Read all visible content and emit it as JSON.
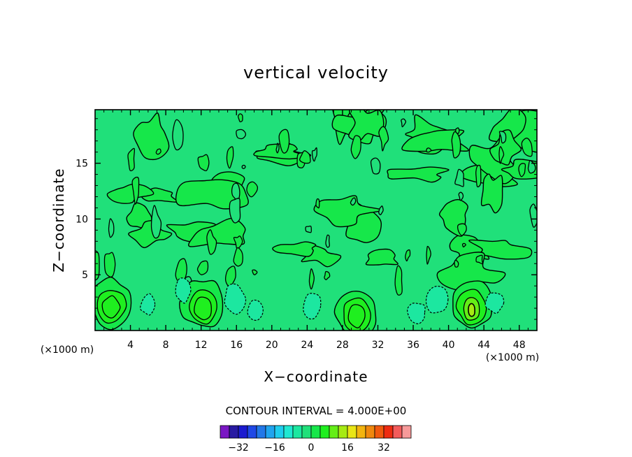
{
  "chart_data": {
    "type": "contour",
    "title": "vertical velocity",
    "xlabel": "X−coordinate",
    "ylabel": "Z−coordinate",
    "x_unit": "(×1000 m)",
    "y_unit": "(×1000 m)",
    "xlim": [
      0,
      50
    ],
    "ylim": [
      0,
      19.8
    ],
    "x_ticks": [
      4,
      8,
      12,
      16,
      20,
      24,
      28,
      32,
      36,
      40,
      44,
      48
    ],
    "x_tick_labels": [
      "4",
      "8",
      "12",
      "16",
      "20",
      "24",
      "28",
      "32",
      "36",
      "40",
      "44",
      "48"
    ],
    "y_ticks": [
      5,
      10,
      15
    ],
    "y_tick_labels": [
      "5",
      "10",
      "15"
    ],
    "contour_interval_text": "CONTOUR INTERVAL = 4.000E+00",
    "contour_interval": 4,
    "colorbar": {
      "levels": [
        -36,
        -32,
        -28,
        -24,
        -20,
        -16,
        -12,
        -8,
        -4,
        0,
        4,
        8,
        12,
        16,
        20,
        24,
        28,
        32,
        36,
        40
      ],
      "colors": [
        "#7a17c4",
        "#281aa2",
        "#1b1bcf",
        "#1f48e6",
        "#2277e8",
        "#20a4ef",
        "#1fcdee",
        "#20e8d2",
        "#1ce7a0",
        "#20e07a",
        "#16e74a",
        "#1fef1f",
        "#64ee17",
        "#a6ea13",
        "#e9e515",
        "#f3b40f",
        "#f0880e",
        "#f0590e",
        "#ee2b11",
        "#f35b5b",
        "#f79a9a"
      ],
      "tick_values": [
        -32,
        -16,
        0,
        16,
        32
      ],
      "tick_labels": [
        "−32",
        "−16",
        "0",
        "16",
        "32"
      ]
    },
    "background_color": "#20e07a",
    "positive_region_colors": [
      "#16e74a",
      "#1fef1f",
      "#64ee17",
      "#a6ea13"
    ],
    "negative_region_colors": [
      "#1ce7a0",
      "#20e8d2"
    ],
    "features": [
      {
        "kind": "updraft",
        "x": 1.8,
        "z": 2.2,
        "value": 12
      },
      {
        "kind": "updraft",
        "x": 12.2,
        "z": 2.1,
        "value": 12
      },
      {
        "kind": "updraft",
        "x": 29.6,
        "z": 1.4,
        "value": 12
      },
      {
        "kind": "updraft",
        "x": 42.6,
        "z": 2.1,
        "value": 16
      },
      {
        "kind": "downdraft",
        "x": 6.0,
        "z": 2.3,
        "value": -4
      },
      {
        "kind": "downdraft",
        "x": 10.0,
        "z": 3.6,
        "value": -4
      },
      {
        "kind": "downdraft",
        "x": 15.8,
        "z": 2.8,
        "value": -4
      },
      {
        "kind": "downdraft",
        "x": 18.2,
        "z": 1.9,
        "value": -4
      },
      {
        "kind": "downdraft",
        "x": 24.6,
        "z": 2.2,
        "value": -4
      },
      {
        "kind": "downdraft",
        "x": 36.4,
        "z": 1.6,
        "value": -4
      },
      {
        "kind": "downdraft",
        "x": 38.6,
        "z": 2.8,
        "value": -4
      },
      {
        "kind": "downdraft",
        "x": 45.2,
        "z": 2.5,
        "value": -4
      }
    ]
  }
}
